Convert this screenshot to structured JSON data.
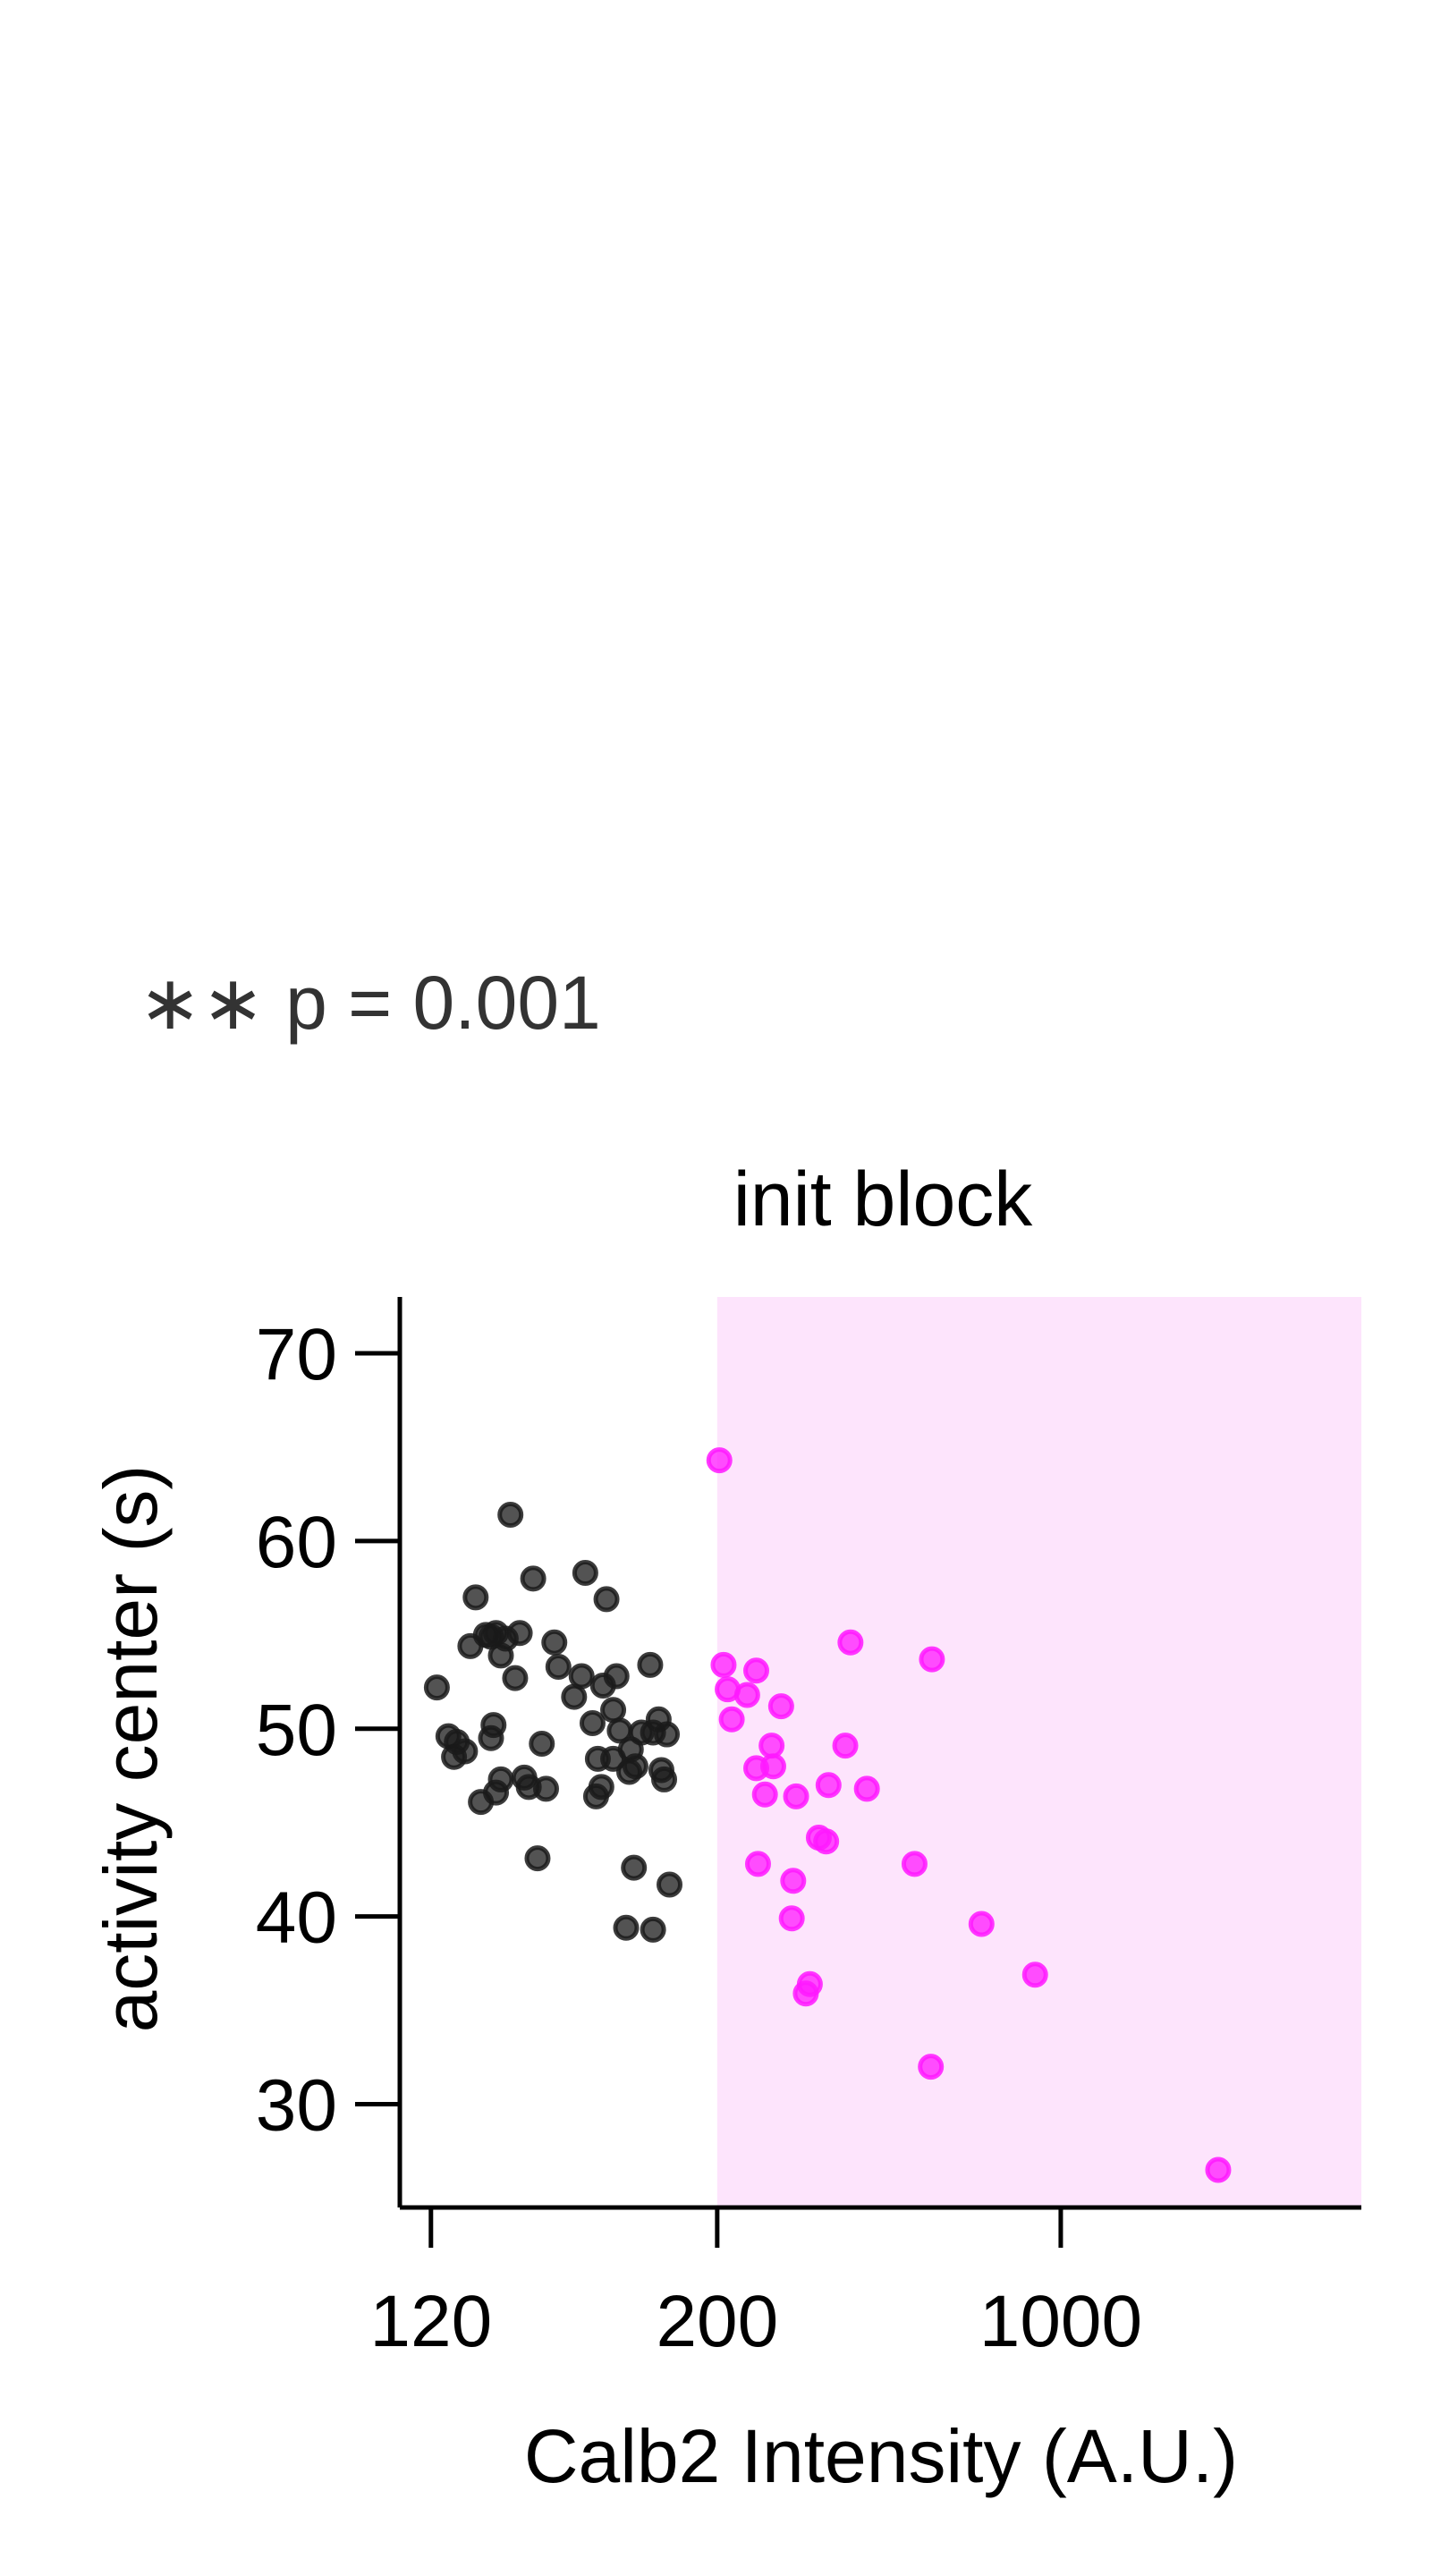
{
  "annotation": "∗∗ p = 0.001",
  "chart_data": {
    "type": "scatter",
    "title": "init block",
    "xlabel": "Calb2 Intensity (A.U.)",
    "ylabel": "activity center (s)",
    "xscale": "reciprocal",
    "xticks": [
      120,
      200,
      1000
    ],
    "xtick_labels": [
      "120",
      "200",
      "1000"
    ],
    "yticks": [
      30,
      40,
      50,
      60,
      70
    ],
    "ytick_labels": [
      "30",
      "40",
      "50",
      "60",
      "70"
    ],
    "xlim": [
      115,
      -400
    ],
    "ylim": [
      24.5,
      73
    ],
    "grid": false,
    "legend": "none",
    "highlight_region": {
      "x_from": 200,
      "x_to": -400,
      "color": "#fde4fc"
    },
    "series": [
      {
        "color": "#1a1a1a",
        "points": [
          [
            121,
            52.2
          ],
          [
            123,
            49.6
          ],
          [
            124,
            48.5
          ],
          [
            124.5,
            49.3
          ],
          [
            126,
            48.8
          ],
          [
            127,
            54.4
          ],
          [
            128,
            57.0
          ],
          [
            129,
            46.1
          ],
          [
            130,
            55.0
          ],
          [
            131,
            54.9
          ],
          [
            131,
            49.5
          ],
          [
            131.5,
            50.2
          ],
          [
            132,
            46.6
          ],
          [
            132,
            55.1
          ],
          [
            133,
            47.3
          ],
          [
            133,
            53.9
          ],
          [
            134,
            54.8
          ],
          [
            135,
            61.4
          ],
          [
            136,
            52.7
          ],
          [
            137,
            55.1
          ],
          [
            138,
            47.4
          ],
          [
            139,
            46.9
          ],
          [
            140,
            58.0
          ],
          [
            141,
            43.1
          ],
          [
            142,
            49.2
          ],
          [
            143,
            46.8
          ],
          [
            145,
            54.6
          ],
          [
            146,
            53.3
          ],
          [
            150,
            51.7
          ],
          [
            152,
            52.8
          ],
          [
            153,
            58.3
          ],
          [
            155,
            50.3
          ],
          [
            156,
            46.4
          ],
          [
            156.5,
            48.4
          ],
          [
            157.5,
            46.9
          ],
          [
            158,
            52.3
          ],
          [
            159,
            56.9
          ],
          [
            161,
            51.0
          ],
          [
            161,
            48.4
          ],
          [
            162,
            52.8
          ],
          [
            163,
            49.9
          ],
          [
            165,
            39.4
          ],
          [
            166,
            47.7
          ],
          [
            166.5,
            48.9
          ],
          [
            167.5,
            42.6
          ],
          [
            168,
            48.0
          ],
          [
            170,
            49.8
          ],
          [
            173,
            53.4
          ],
          [
            174,
            49.8
          ],
          [
            174,
            39.3
          ],
          [
            176,
            50.5
          ],
          [
            177,
            47.8
          ],
          [
            178,
            47.3
          ],
          [
            179,
            49.7
          ],
          [
            180,
            41.7
          ]
        ]
      },
      {
        "color": "#ff19ff",
        "points": [
          [
            201,
            64.3
          ],
          [
            203,
            53.4
          ],
          [
            205,
            52.1
          ],
          [
            207,
            50.5
          ],
          [
            215,
            51.8
          ],
          [
            220,
            53.1
          ],
          [
            220,
            47.9
          ],
          [
            221,
            42.8
          ],
          [
            225,
            46.5
          ],
          [
            229,
            49.1
          ],
          [
            230,
            48.0
          ],
          [
            235,
            51.2
          ],
          [
            242,
            39.9
          ],
          [
            243,
            41.9
          ],
          [
            245,
            46.4
          ],
          [
            252,
            35.9
          ],
          [
            255,
            36.4
          ],
          [
            262,
            44.2
          ],
          [
            268,
            44.0
          ],
          [
            270,
            47.0
          ],
          [
            285,
            49.1
          ],
          [
            290,
            54.6
          ],
          [
            307,
            46.8
          ],
          [
            370,
            42.8
          ],
          [
            398,
            32.0
          ],
          [
            400,
            53.7
          ],
          [
            520,
            39.6
          ],
          [
            770,
            36.9
          ],
          [
            -1200,
            26.5
          ]
        ]
      }
    ]
  }
}
